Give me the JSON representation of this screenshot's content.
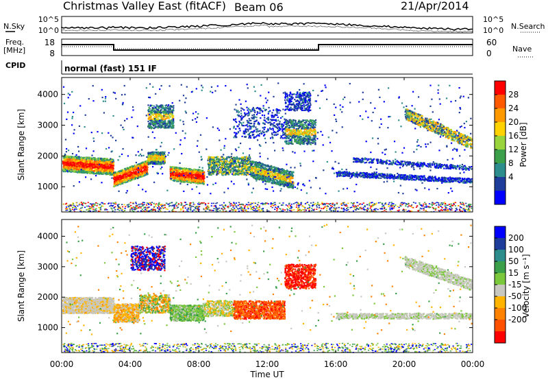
{
  "header": {
    "title": "Christmas Valley East (fitACF)",
    "beam": "Beam 06",
    "date": "21/Apr/2014"
  },
  "top_panels": {
    "nsky_label": "N.Sky",
    "nsearch_label": "N.Search",
    "noise_ticks": [
      "10^5",
      "10^0"
    ],
    "freq_label": "Freq.",
    "freq_unit": "[MHz]",
    "freq_ticks": [
      "18",
      "8"
    ],
    "nave_label": "Nave",
    "nave_ticks": [
      "60",
      "0"
    ],
    "cpid_label": "CPID",
    "cpid_text": "normal (fast) 151 IF"
  },
  "chart_data": [
    {
      "type": "heatmap",
      "name": "power",
      "ylabel": "Slant Range [km]",
      "yticks": [
        1000,
        2000,
        3000,
        4000
      ],
      "ylim": [
        180,
        4550
      ],
      "xlim": [
        0,
        24
      ],
      "colorbar": {
        "label": "Power [dB]",
        "ticks": [
          "28",
          "24",
          "20",
          "16",
          "12",
          "8",
          "4"
        ],
        "colors": [
          "#ff0000",
          "#ff5a00",
          "#ff9900",
          "#ffd200",
          "#9ad43c",
          "#3ca04a",
          "#2d8c8c",
          "#1e3c9a",
          "#0000ff"
        ]
      }
    },
    {
      "type": "heatmap",
      "name": "velocity",
      "ylabel": "Slant Range [km]",
      "yticks": [
        1000,
        2000,
        3000,
        4000
      ],
      "ylim": [
        180,
        4550
      ],
      "xlim": [
        0,
        24
      ],
      "colorbar": {
        "label": "Velocity [m s⁻¹]",
        "ticks": [
          "200",
          "100",
          "50",
          "15",
          "-15",
          "-50",
          "-100",
          "-200"
        ],
        "colors": [
          "#0000ff",
          "#1e3c9a",
          "#2d8c8c",
          "#3ca04a",
          "#7cc83c",
          "#c8c8c0",
          "#ffb400",
          "#ff8200",
          "#ff5000",
          "#ff0000"
        ]
      }
    }
  ],
  "xaxis": {
    "label": "Time UT",
    "ticks": [
      "00:00",
      "04:00",
      "08:00",
      "12:00",
      "16:00",
      "20:00",
      "00:00"
    ]
  }
}
